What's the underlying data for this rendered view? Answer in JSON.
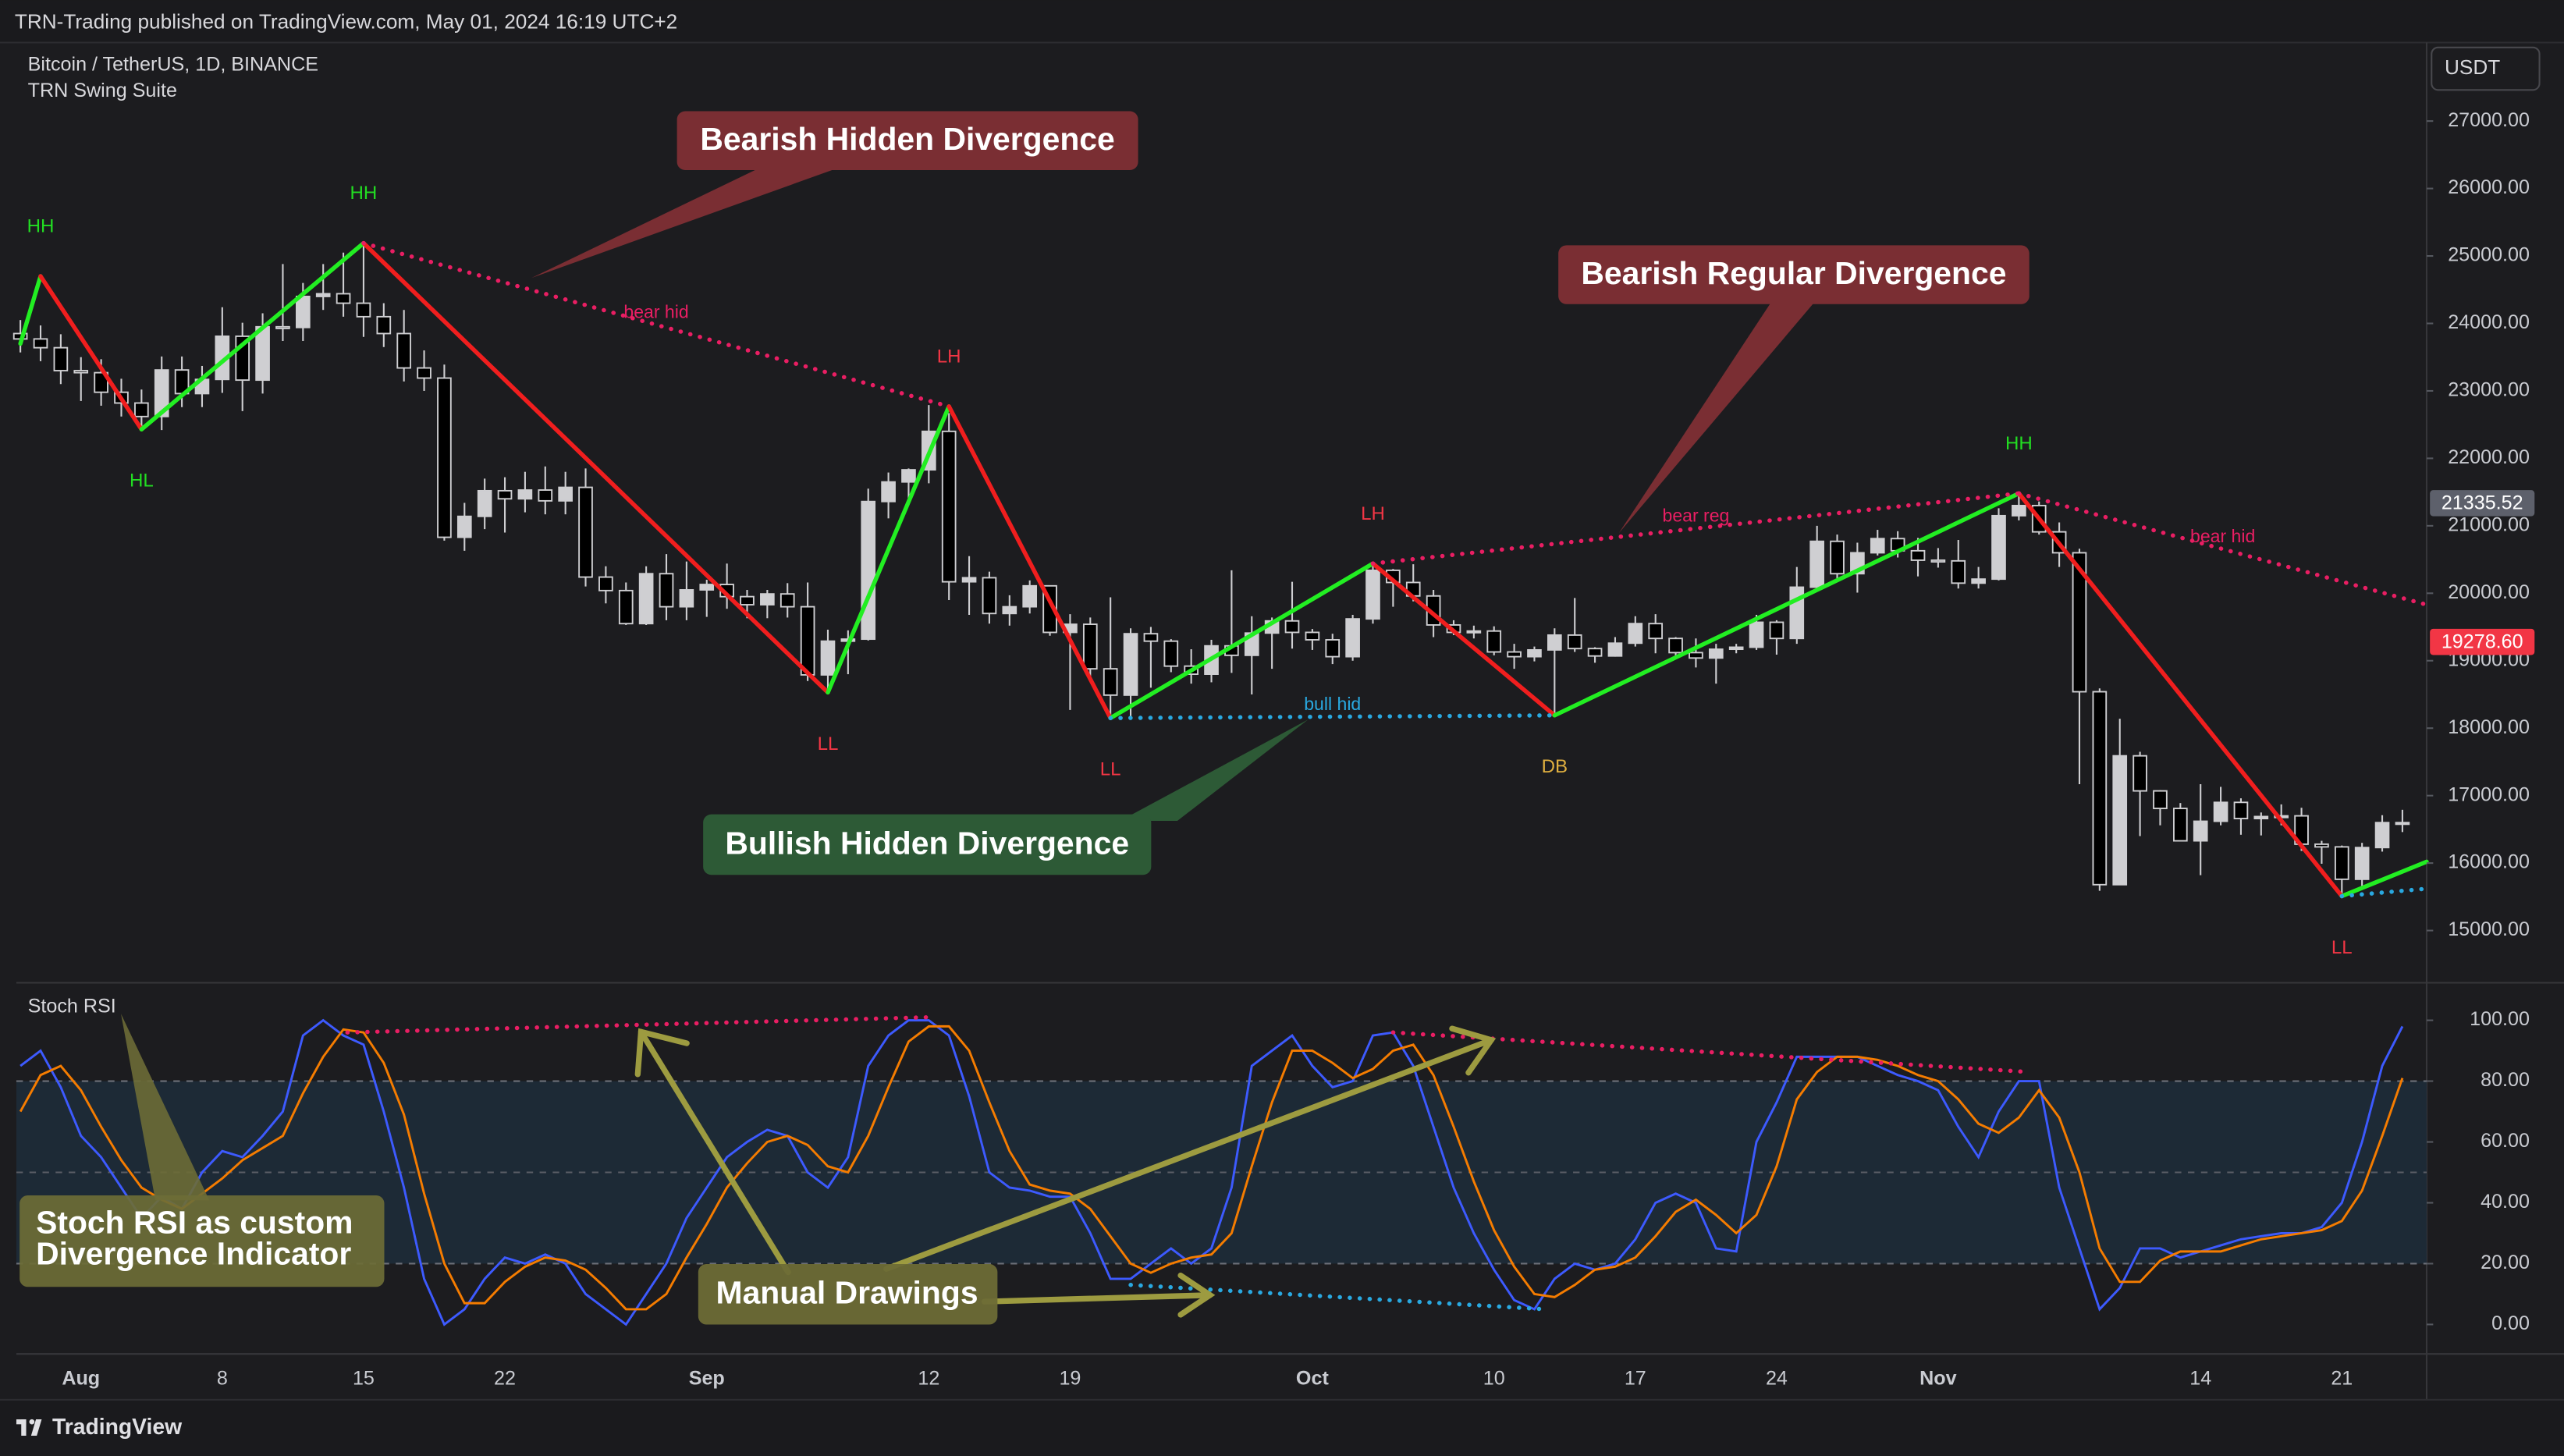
{
  "header": {
    "text": "TRN-Trading published on TradingView.com, May 01, 2024 16:19 UTC+2"
  },
  "chart_data": [
    {
      "type": "candlestick",
      "title": "Bitcoin / TetherUS, 1D, BINANCE",
      "subtitle": "TRN Swing Suite",
      "currency": "USDT",
      "categories": [
        null,
        null,
        null,
        "Aug",
        null,
        null,
        null,
        null,
        null,
        null,
        "8",
        null,
        null,
        null,
        null,
        null,
        null,
        "15",
        null,
        null,
        null,
        null,
        null,
        null,
        "22",
        null,
        null,
        null,
        null,
        null,
        null,
        null,
        null,
        null,
        "Sep",
        null,
        null,
        null,
        null,
        null,
        null,
        null,
        null,
        null,
        null,
        "12",
        null,
        null,
        null,
        null,
        null,
        null,
        "19",
        null,
        null,
        null,
        null,
        null,
        null,
        null,
        null,
        null,
        null,
        null,
        "Oct",
        null,
        null,
        null,
        null,
        null,
        null,
        null,
        null,
        "10",
        null,
        null,
        null,
        null,
        null,
        null,
        "17",
        null,
        null,
        null,
        null,
        null,
        null,
        "24",
        null,
        null,
        null,
        null,
        null,
        null,
        null,
        "Nov",
        null,
        null,
        null,
        null,
        null,
        null,
        null,
        null,
        null,
        null,
        null,
        null,
        "14",
        null,
        null,
        null,
        null,
        null,
        null,
        "21",
        null,
        null,
        null
      ],
      "open": [
        23850,
        23770,
        23640,
        23300,
        23270,
        22980,
        22820,
        22620,
        23310,
        22960,
        23170,
        23810,
        23160,
        23950,
        23940,
        24400,
        24440,
        24300,
        24100,
        23850,
        23340,
        23190,
        20830,
        21140,
        21520,
        21400,
        21530,
        21370,
        21570,
        20240,
        20040,
        19550,
        20290,
        19800,
        20050,
        20130,
        19950,
        19830,
        19990,
        19800,
        18790,
        19290,
        19320,
        21360,
        21650,
        21830,
        22400,
        20170,
        20230,
        19700,
        19800,
        20110,
        19420,
        19540,
        18880,
        18490,
        19400,
        19290,
        18920,
        18800,
        19220,
        19080,
        19410,
        19590,
        19420,
        19310,
        19060,
        19620,
        20340,
        20160,
        19960,
        19530,
        19420,
        19440,
        19130,
        19060,
        19160,
        19380,
        19180,
        19070,
        19260,
        19550,
        19330,
        19120,
        19040,
        19170,
        19200,
        19570,
        19330,
        20090,
        20770,
        20290,
        20600,
        20810,
        20630,
        20490,
        20480,
        20150,
        20210,
        21150,
        21300,
        20910,
        20600,
        18540,
        15680,
        17590,
        17070,
        16810,
        16330,
        16620,
        16900,
        16660,
        16690,
        16700,
        16280,
        16240,
        15760,
        16230,
        16600
      ],
      "high": [
        24050,
        23970,
        23840,
        23500,
        23470,
        23180,
        23020,
        23510,
        23510,
        23370,
        24240,
        24010,
        24150,
        24880,
        24600,
        24880,
        25050,
        25200,
        24300,
        24200,
        23600,
        23390,
        21340,
        21700,
        21720,
        21800,
        21880,
        21800,
        21850,
        20400,
        20160,
        20400,
        20580,
        20470,
        20200,
        20440,
        20050,
        20050,
        20150,
        20160,
        19460,
        19450,
        21550,
        21790,
        21850,
        22790,
        22670,
        20550,
        20320,
        19970,
        20190,
        20110,
        19690,
        19640,
        19940,
        19480,
        19500,
        19320,
        19170,
        19310,
        20340,
        19660,
        19640,
        20170,
        19470,
        19400,
        19680,
        20450,
        20360,
        20430,
        20050,
        19600,
        19520,
        19510,
        19250,
        19210,
        19480,
        19930,
        19200,
        19350,
        19660,
        19690,
        19350,
        19330,
        19250,
        19250,
        19680,
        19600,
        20390,
        21000,
        20870,
        20750,
        20940,
        20920,
        20820,
        20670,
        20790,
        20390,
        21260,
        21450,
        21360,
        21050,
        20660,
        18590,
        18140,
        17650,
        17080,
        16890,
        17170,
        17130,
        16960,
        16750,
        16870,
        16820,
        16330,
        16260,
        16300,
        16710,
        16790
      ],
      "low": [
        23570,
        23440,
        23100,
        22850,
        22780,
        22620,
        22420,
        22420,
        22760,
        22760,
        22970,
        22700,
        22960,
        23740,
        23740,
        24200,
        24100,
        23800,
        23650,
        23140,
        23000,
        20780,
        20630,
        20950,
        20900,
        21200,
        21170,
        21170,
        20100,
        19850,
        19530,
        19530,
        19600,
        19600,
        19650,
        19770,
        19630,
        19630,
        19640,
        18700,
        18540,
        18800,
        19300,
        21110,
        21370,
        21630,
        19900,
        19680,
        19550,
        19520,
        19700,
        19370,
        18270,
        18730,
        18130,
        18180,
        18600,
        18830,
        18660,
        18680,
        18820,
        18500,
        18880,
        19180,
        19160,
        18950,
        19000,
        19550,
        19800,
        19880,
        19350,
        19380,
        19330,
        19080,
        18880,
        18990,
        18200,
        19130,
        18970,
        19060,
        19210,
        19110,
        19060,
        18900,
        18660,
        19110,
        19160,
        19090,
        19250,
        20070,
        20220,
        20010,
        20560,
        20530,
        20250,
        20380,
        20070,
        20070,
        20190,
        21080,
        20870,
        20390,
        17170,
        15590,
        15700,
        16400,
        16560,
        16320,
        15820,
        16560,
        16420,
        16410,
        16560,
        16180,
        15990,
        15480,
        15630,
        16170,
        16460
      ],
      "close": [
        23770,
        23640,
        23300,
        23270,
        22980,
        22820,
        22620,
        23310,
        22960,
        23170,
        23810,
        23160,
        23950,
        23940,
        24400,
        24440,
        24300,
        24100,
        23850,
        23340,
        23190,
        20830,
        21140,
        21520,
        21400,
        21530,
        21370,
        21570,
        20240,
        20040,
        19550,
        20290,
        19800,
        20050,
        20130,
        19950,
        19830,
        19990,
        19800,
        18790,
        19290,
        19320,
        21360,
        21650,
        21830,
        22400,
        20170,
        20230,
        19700,
        19800,
        20110,
        19420,
        19540,
        18880,
        18490,
        19400,
        19290,
        18920,
        18800,
        19220,
        19080,
        19410,
        19590,
        19420,
        19310,
        19060,
        19620,
        20340,
        20160,
        19960,
        19530,
        19420,
        19440,
        19130,
        19060,
        19160,
        19380,
        19180,
        19070,
        19260,
        19550,
        19330,
        19120,
        19040,
        19170,
        19200,
        19570,
        19330,
        20090,
        20770,
        20290,
        20600,
        20810,
        20630,
        20490,
        20480,
        20150,
        20210,
        21150,
        21300,
        20910,
        20600,
        18540,
        15680,
        17590,
        17070,
        16810,
        16330,
        16620,
        16900,
        16660,
        16690,
        16700,
        16280,
        16240,
        15760,
        16230,
        16600,
        16600
      ],
      "up_color": "#cfcfd2",
      "down_color": "#000000",
      "wick_color": "#cfcfd2",
      "xlim": [
        -0.2,
        119.2
      ],
      "ylim": [
        14250,
        28140
      ],
      "yticks": [
        {
          "value": 15000,
          "label": "15000.00"
        },
        {
          "value": 16000,
          "label": "16000.00"
        },
        {
          "value": 17000,
          "label": "17000.00"
        },
        {
          "value": 18000,
          "label": "18000.00"
        },
        {
          "value": 19000,
          "label": "19000.00"
        },
        {
          "value": 20000,
          "label": "20000.00"
        },
        {
          "value": 21000,
          "label": "21000.00"
        },
        {
          "value": 22000,
          "label": "22000.00"
        },
        {
          "value": 23000,
          "label": "23000.00"
        },
        {
          "value": 24000,
          "label": "24000.00"
        },
        {
          "value": 25000,
          "label": "25000.00"
        },
        {
          "value": 26000,
          "label": "26000.00"
        },
        {
          "value": 27000,
          "label": "27000.00"
        }
      ],
      "grid": false,
      "price_labels": [
        {
          "value": 21335.52,
          "label": "21335.52",
          "color": "#5d606b"
        },
        {
          "value": 19278.6,
          "label": "19278.60",
          "color": "#f23645"
        }
      ],
      "zigzag": {
        "x": [
          0,
          1,
          6,
          17,
          40,
          46,
          54,
          67,
          76,
          99,
          115,
          119.2
        ],
        "y": [
          23700,
          24700,
          22430,
          25190,
          18530,
          22770,
          18150,
          20440,
          18190,
          21480,
          15510,
          16020
        ],
        "labels": [
          null,
          "HH",
          "HL",
          "HH",
          "LL",
          "LH",
          "LL",
          "LH",
          "DB",
          "HH",
          "LL",
          null
        ],
        "label_colors": [
          null,
          "#22dd22",
          "#22dd22",
          "#22dd22",
          "#f23645",
          "#f23645",
          "#f23645",
          "#f23645",
          "#e0b040",
          "#22dd22",
          "#f23645",
          null
        ],
        "up_color": "#22ee22",
        "down_color": "#f01e1e"
      },
      "divergences": [
        {
          "label": "bear hid",
          "color": "#e91e63",
          "x": [
            17,
            46
          ],
          "y": [
            25190,
            22770
          ]
        },
        {
          "label": "bull hid",
          "color": "#29a8e0",
          "x": [
            54,
            76
          ],
          "y": [
            18150,
            18190
          ]
        },
        {
          "label": "bear reg",
          "color": "#e91e63",
          "x": [
            67,
            99
          ],
          "y": [
            20440,
            21480
          ]
        },
        {
          "label": "bear hid",
          "color": "#e91e63",
          "x": [
            99,
            119.2
          ],
          "y": [
            21480,
            19830
          ]
        },
        {
          "color": "#29a8e0",
          "x": [
            115,
            119.2
          ],
          "y": [
            15510,
            15620
          ]
        }
      ]
    },
    {
      "type": "line",
      "title": "Stoch RSI",
      "xlim": [
        -0.2,
        119.2
      ],
      "ylim": [
        -9.7,
        111.8
      ],
      "yticks": [
        {
          "value": 0,
          "label": "0.00"
        },
        {
          "value": 20,
          "label": "20.00"
        },
        {
          "value": 40,
          "label": "40.00"
        },
        {
          "value": 60,
          "label": "60.00"
        },
        {
          "value": 80,
          "label": "80.00"
        },
        {
          "value": 100,
          "label": "100.00"
        }
      ],
      "band": [
        20,
        80
      ],
      "midline": 50,
      "band_color": "#1d2a36",
      "series": [
        {
          "color": "#3d5afe",
          "values": [
            85,
            90,
            78,
            62,
            55,
            45,
            35,
            42,
            38,
            50,
            57,
            55,
            62,
            70,
            95,
            100,
            95,
            92,
            70,
            45,
            15,
            0,
            5,
            15,
            22,
            20,
            23,
            20,
            10,
            5,
            0,
            10,
            20,
            35,
            45,
            55,
            60,
            64,
            62,
            50,
            45,
            55,
            85,
            95,
            100,
            100,
            95,
            75,
            50,
            45,
            44,
            42,
            42,
            30,
            15,
            15,
            20,
            25,
            20,
            25,
            45,
            85,
            90,
            95,
            85,
            78,
            80,
            95,
            96,
            85,
            65,
            45,
            30,
            18,
            8,
            5,
            15,
            20,
            18,
            20,
            28,
            40,
            43,
            40,
            25,
            24,
            60,
            73,
            88,
            88,
            88,
            88,
            85,
            82,
            80,
            77,
            65,
            55,
            70,
            80,
            80,
            45,
            25,
            5,
            12,
            25,
            25,
            22,
            24,
            26,
            28,
            29,
            30,
            30,
            32,
            40,
            60,
            85,
            98
          ]
        },
        {
          "color": "#f57c00",
          "values": [
            70,
            82,
            85,
            77,
            65,
            54,
            45,
            41,
            38,
            43,
            48,
            54,
            58,
            62,
            76,
            88,
            97,
            96,
            86,
            69,
            43,
            20,
            7,
            7,
            14,
            19,
            22,
            21,
            18,
            12,
            5,
            5,
            10,
            22,
            33,
            45,
            53,
            60,
            62,
            59,
            52,
            50,
            62,
            78,
            93,
            98,
            98,
            90,
            73,
            57,
            46,
            44,
            43,
            38,
            29,
            20,
            17,
            20,
            22,
            23,
            30,
            52,
            73,
            90,
            90,
            86,
            81,
            84,
            90,
            92,
            82,
            65,
            47,
            31,
            19,
            10,
            9,
            13,
            18,
            19,
            22,
            29,
            37,
            41,
            36,
            30,
            36,
            52,
            74,
            83,
            88,
            88,
            87,
            85,
            82,
            80,
            74,
            66,
            63,
            68,
            77,
            68,
            50,
            25,
            14,
            14,
            21,
            24,
            24,
            24,
            26,
            28,
            29,
            30,
            31,
            34,
            44,
            62,
            81
          ]
        }
      ],
      "divergences": [
        {
          "color": "#e91e63",
          "x": [
            16.2,
            45
          ],
          "y": [
            96,
            101
          ]
        },
        {
          "color": "#e91e63",
          "x": [
            68,
            99.5
          ],
          "y": [
            96,
            83
          ]
        },
        {
          "color": "#29a8e0",
          "x": [
            55,
            75.5
          ],
          "y": [
            13,
            5
          ]
        }
      ]
    }
  ],
  "callouts": [
    {
      "text": "Bearish Hidden Divergence"
    },
    {
      "text": "Bearish Regular Divergence"
    },
    {
      "text": "Bullish Hidden Divergence"
    },
    {
      "lines": [
        "Stoch RSI as custom",
        "Divergence Indicator"
      ]
    },
    {
      "text": "Manual Drawings"
    }
  ],
  "footer": {
    "brand": "TradingView"
  }
}
